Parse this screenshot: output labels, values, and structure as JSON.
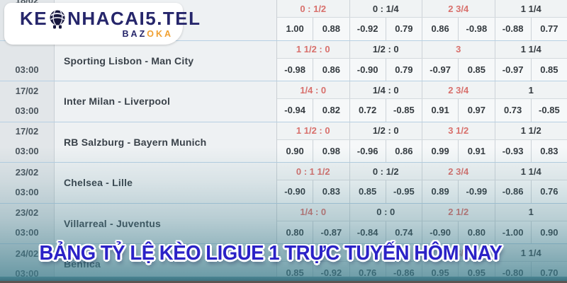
{
  "logo": {
    "main_prefix": "KE",
    "main_suffix": "NHACAI5.TEL",
    "globe_icon": "globe-mascot-icon",
    "sub_prefix": "BAZ",
    "sub_suffix": "OKA"
  },
  "banner": {
    "text": "BẢNG TỶ LỆ KÈO LIGUE 1 TRỰC TUYẾN HÔM NAY"
  },
  "colors": {
    "accent_red": "#d8706c",
    "text_dark": "#343a3f",
    "banner_blue": "#2b22c7",
    "logo_navy": "#26266b",
    "logo_orange": "#f0a030",
    "overlay_teal": "#3e7d8c",
    "row_separator_blue": "#b7d0e3"
  },
  "table": {
    "rows": [
      {
        "date": "18/02",
        "time": "",
        "match": "",
        "partial": true,
        "handicaps": [
          {
            "v": "0 : 1/2",
            "hot": true
          },
          {
            "v": "0 : 1/4",
            "hot": false
          },
          {
            "v": "2 3/4",
            "hot": true
          },
          {
            "v": "1 1/4",
            "hot": false
          }
        ],
        "odds": [
          "1.00",
          "0.88",
          "-0.92",
          "0.79",
          "0.86",
          "-0.98",
          "-0.88",
          "0.77"
        ]
      },
      {
        "date": "",
        "time": "03:00",
        "match": "Sporting Lisbon - Man City",
        "partial": false,
        "handicaps": [
          {
            "v": "1 1/2 : 0",
            "hot": true
          },
          {
            "v": "1/2 : 0",
            "hot": false
          },
          {
            "v": "3",
            "hot": true
          },
          {
            "v": "1 1/4",
            "hot": false
          }
        ],
        "odds": [
          "-0.98",
          "0.86",
          "-0.90",
          "0.79",
          "-0.97",
          "0.85",
          "-0.97",
          "0.85"
        ]
      },
      {
        "date": "17/02",
        "time": "03:00",
        "match": "Inter Milan - Liverpool",
        "partial": false,
        "handicaps": [
          {
            "v": "1/4 : 0",
            "hot": true
          },
          {
            "v": "1/4 : 0",
            "hot": false
          },
          {
            "v": "2 3/4",
            "hot": true
          },
          {
            "v": "1",
            "hot": false
          }
        ],
        "odds": [
          "-0.94",
          "0.82",
          "0.72",
          "-0.85",
          "0.91",
          "0.97",
          "0.73",
          "-0.85"
        ]
      },
      {
        "date": "17/02",
        "time": "03:00",
        "match": "RB Salzburg - Bayern Munich",
        "partial": false,
        "handicaps": [
          {
            "v": "1 1/2 : 0",
            "hot": true
          },
          {
            "v": "1/2 : 0",
            "hot": false
          },
          {
            "v": "3 1/2",
            "hot": true
          },
          {
            "v": "1 1/2",
            "hot": false
          }
        ],
        "odds": [
          "0.90",
          "0.98",
          "-0.96",
          "0.86",
          "0.99",
          "0.91",
          "-0.93",
          "0.83"
        ]
      },
      {
        "date": "23/02",
        "time": "03:00",
        "match": "Chelsea - Lille",
        "partial": false,
        "handicaps": [
          {
            "v": "0 : 1 1/2",
            "hot": true
          },
          {
            "v": "0 : 1/2",
            "hot": false
          },
          {
            "v": "2 3/4",
            "hot": true
          },
          {
            "v": "1 1/4",
            "hot": false
          }
        ],
        "odds": [
          "-0.90",
          "0.83",
          "0.85",
          "-0.95",
          "0.89",
          "-0.99",
          "-0.86",
          "0.76"
        ]
      },
      {
        "date": "23/02",
        "time": "03:00",
        "match": "Villarreal - Juventus",
        "partial": false,
        "handicaps": [
          {
            "v": "1/4 : 0",
            "hot": true
          },
          {
            "v": "0 : 0",
            "hot": false
          },
          {
            "v": "2 1/2",
            "hot": true
          },
          {
            "v": "1",
            "hot": false
          }
        ],
        "odds": [
          "0.80",
          "-0.87",
          "-0.84",
          "0.74",
          "-0.90",
          "0.80",
          "-1.00",
          "0.90"
        ]
      },
      {
        "date": "24/02",
        "time": "03:00",
        "match": "Benfica",
        "partial": false,
        "handicaps": [
          {
            "v": "",
            "hot": false
          },
          {
            "v": "",
            "hot": false
          },
          {
            "v": "2 3/4",
            "hot": true
          },
          {
            "v": "1 1/4",
            "hot": false
          }
        ],
        "odds": [
          "0.85",
          "-0.92",
          "0.76",
          "-0.86",
          "0.95",
          "0.95",
          "-0.80",
          "0.70"
        ]
      }
    ]
  }
}
